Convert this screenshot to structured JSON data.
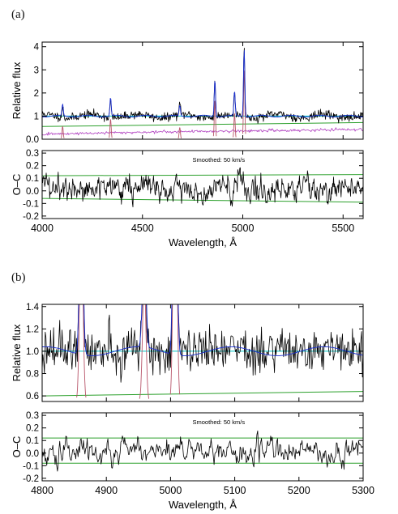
{
  "figure": {
    "panel_a_label": "(a)",
    "panel_b_label": "(b)"
  },
  "colors": {
    "observed": "#000000",
    "model": "#1a2fd0",
    "continuum": "#00c8c8",
    "residual_band": "#2ca02c",
    "emission_lines": "#b8556a",
    "secondary_component": "#b040c0"
  },
  "chart_data": [
    {
      "id": "a_top",
      "type": "line",
      "ylabel": "Relative flux",
      "xlim": [
        4000,
        5600
      ],
      "ylim": [
        0,
        4.2
      ],
      "yticks": [
        0,
        1,
        2,
        3,
        4
      ],
      "continuum_level": 1.0,
      "green_line": {
        "x": [
          4000,
          5600
        ],
        "y": [
          0.55,
          0.72
        ]
      },
      "secondary_component": {
        "x": [
          4000,
          4600,
          5600
        ],
        "y": [
          0.22,
          0.32,
          0.42
        ]
      },
      "emission_lines": [
        {
          "x": 4102,
          "peak": 0.5
        },
        {
          "x": 4341,
          "peak": 0.8
        },
        {
          "x": 4686,
          "peak": 0.45
        },
        {
          "x": 4861,
          "peak": 1.6
        },
        {
          "x": 4959,
          "peak": 1.05
        },
        {
          "x": 5007,
          "peak": 2.9
        }
      ]
    },
    {
      "id": "a_bottom",
      "type": "line",
      "ylabel": "O–C",
      "xlabel": "Wavelength, Å",
      "annotation": "Smoothed: 50 km/s",
      "xlim": [
        4000,
        5600
      ],
      "ylim": [
        -0.22,
        0.32
      ],
      "yticks": [
        0.3,
        0.2,
        0.1,
        0.0,
        -0.1,
        -0.2
      ],
      "xticks": [
        4000,
        4500,
        5000,
        5500
      ],
      "band_lines": {
        "upper": {
          "x": [
            4000,
            5600
          ],
          "y": [
            0.12,
            0.13
          ]
        },
        "lower": {
          "x": [
            4000,
            5600
          ],
          "y": [
            -0.06,
            -0.09
          ]
        }
      },
      "residual_sigma": 0.065
    },
    {
      "id": "b_top",
      "type": "line",
      "ylabel": "Relative flux",
      "xlim": [
        4800,
        5300
      ],
      "ylim": [
        0.55,
        1.42
      ],
      "yticks": [
        0.6,
        0.8,
        1.0,
        1.2,
        1.4
      ],
      "continuum_level": 1.0,
      "green_line": {
        "x": [
          4800,
          5300
        ],
        "y": [
          0.6,
          0.64
        ]
      },
      "emission_lines": [
        {
          "x": 4861,
          "peak": 1.6
        },
        {
          "x": 4959,
          "peak": 1.05
        },
        {
          "x": 5007,
          "peak": 2.9
        }
      ]
    },
    {
      "id": "b_bottom",
      "type": "line",
      "ylabel": "O–C",
      "xlabel": "Wavelength, Å",
      "annotation": "Smoothed: 50 km/s",
      "xlim": [
        4800,
        5300
      ],
      "ylim": [
        -0.22,
        0.32
      ],
      "yticks": [
        0.3,
        0.2,
        0.1,
        0.0,
        -0.1,
        -0.2
      ],
      "xticks": [
        4800,
        4900,
        5000,
        5100,
        5200,
        5300
      ],
      "band_lines": {
        "upper": {
          "x": [
            4800,
            5300
          ],
          "y": [
            0.12,
            0.12
          ]
        },
        "lower": {
          "x": [
            4800,
            5300
          ],
          "y": [
            -0.08,
            -0.08
          ]
        }
      },
      "residual_sigma": 0.06
    }
  ]
}
